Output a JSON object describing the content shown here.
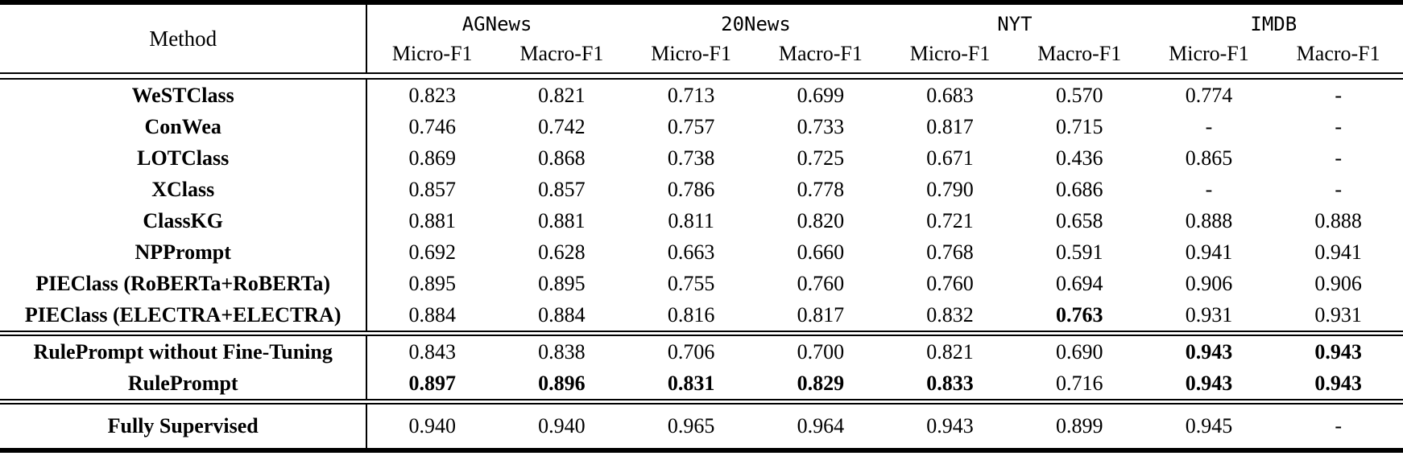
{
  "table": {
    "method_header": "Method",
    "groups": [
      {
        "name": "AGNews",
        "metrics": [
          "Micro-F1",
          "Macro-F1"
        ]
      },
      {
        "name": "20News",
        "metrics": [
          "Micro-F1",
          "Macro-F1"
        ]
      },
      {
        "name": "NYT",
        "metrics": [
          "Micro-F1",
          "Macro-F1"
        ]
      },
      {
        "name": "IMDB",
        "metrics": [
          "Micro-F1",
          "Macro-F1"
        ]
      }
    ],
    "sections": [
      {
        "rows": [
          {
            "method": "WeSTClass",
            "values": [
              "0.823",
              "0.821",
              "0.713",
              "0.699",
              "0.683",
              "0.570",
              "0.774",
              "-"
            ],
            "bold": []
          },
          {
            "method": "ConWea",
            "values": [
              "0.746",
              "0.742",
              "0.757",
              "0.733",
              "0.817",
              "0.715",
              "-",
              "-"
            ],
            "bold": []
          },
          {
            "method": "LOTClass",
            "values": [
              "0.869",
              "0.868",
              "0.738",
              "0.725",
              "0.671",
              "0.436",
              "0.865",
              "-"
            ],
            "bold": []
          },
          {
            "method": "XClass",
            "values": [
              "0.857",
              "0.857",
              "0.786",
              "0.778",
              "0.790",
              "0.686",
              "-",
              "-"
            ],
            "bold": []
          },
          {
            "method": "ClassKG",
            "values": [
              "0.881",
              "0.881",
              "0.811",
              "0.820",
              "0.721",
              "0.658",
              "0.888",
              "0.888"
            ],
            "bold": []
          },
          {
            "method": "NPPrompt",
            "values": [
              "0.692",
              "0.628",
              "0.663",
              "0.660",
              "0.768",
              "0.591",
              "0.941",
              "0.941"
            ],
            "bold": []
          },
          {
            "method": "PIEClass (RoBERTa+RoBERTa)",
            "values": [
              "0.895",
              "0.895",
              "0.755",
              "0.760",
              "0.760",
              "0.694",
              "0.906",
              "0.906"
            ],
            "bold": []
          },
          {
            "method": "PIEClass (ELECTRA+ELECTRA)",
            "values": [
              "0.884",
              "0.884",
              "0.816",
              "0.817",
              "0.832",
              "0.763",
              "0.931",
              "0.931"
            ],
            "bold": [
              5
            ]
          }
        ]
      },
      {
        "rows": [
          {
            "method": "RulePrompt without Fine-Tuning",
            "values": [
              "0.843",
              "0.838",
              "0.706",
              "0.700",
              "0.821",
              "0.690",
              "0.943",
              "0.943"
            ],
            "bold": [
              6,
              7
            ]
          },
          {
            "method": "RulePrompt",
            "values": [
              "0.897",
              "0.896",
              "0.831",
              "0.829",
              "0.833",
              "0.716",
              "0.943",
              "0.943"
            ],
            "bold": [
              0,
              1,
              2,
              3,
              4,
              6,
              7
            ]
          }
        ]
      },
      {
        "rows": [
          {
            "method": "Fully Supervised",
            "values": [
              "0.940",
              "0.940",
              "0.965",
              "0.964",
              "0.943",
              "0.899",
              "0.945",
              "-"
            ],
            "bold": []
          }
        ]
      }
    ]
  }
}
